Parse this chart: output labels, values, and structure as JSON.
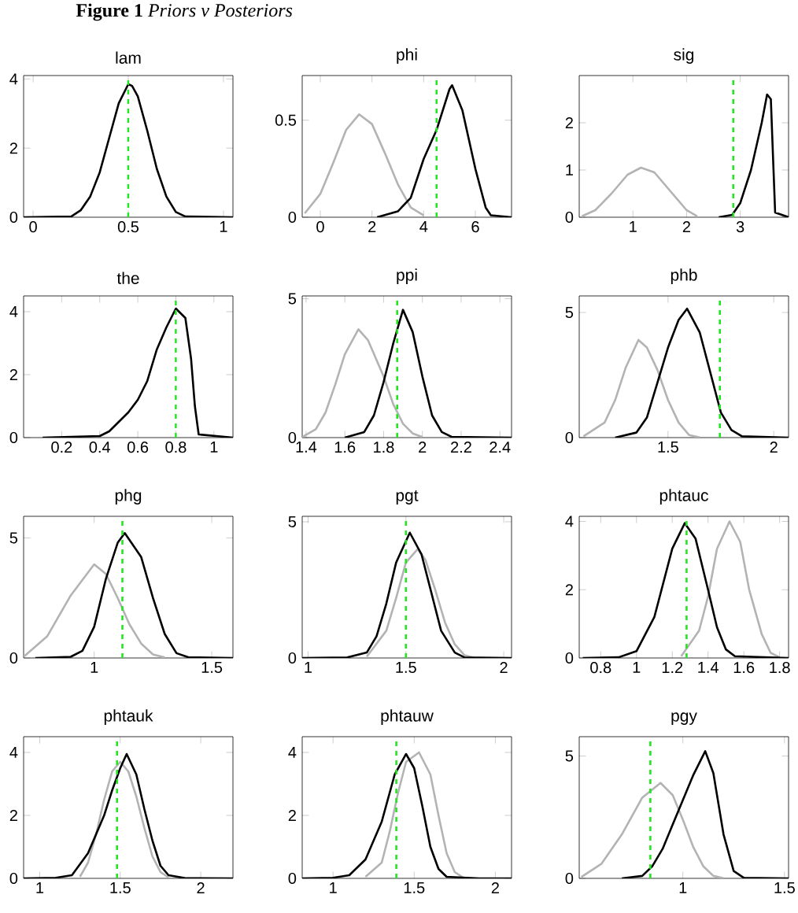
{
  "chart_data": [
    {
      "type": "line",
      "title": "lam",
      "annotations": [
        "**Figure 1** *Priors v Posteriors*"
      ],
      "xlim": [
        -0.05,
        1.05
      ],
      "ylim": [
        0,
        4.1
      ],
      "xticks": [
        0,
        0.5,
        1
      ],
      "yticks": [
        0,
        2,
        4
      ],
      "series": [
        {
          "color": "#000000",
          "x": [
            -0.05,
            0.2,
            0.25,
            0.3,
            0.35,
            0.4,
            0.45,
            0.5,
            0.52,
            0.55,
            0.6,
            0.65,
            0.7,
            0.75,
            0.8,
            1.05
          ],
          "values": [
            0,
            0.02,
            0.2,
            0.6,
            1.3,
            2.3,
            3.3,
            3.85,
            3.8,
            3.5,
            2.5,
            1.4,
            0.6,
            0.15,
            0.02,
            0
          ]
        }
      ],
      "ref_lines": [
        {
          "axis": "x",
          "value": 0.5,
          "color": "#22e622",
          "line_style": "dashed"
        }
      ]
    },
    {
      "type": "line",
      "title": "phi",
      "xlim": [
        -0.7,
        7.4
      ],
      "ylim": [
        0,
        0.73
      ],
      "xticks": [
        0,
        2,
        4,
        6
      ],
      "yticks": [
        0,
        0.5
      ],
      "series": [
        {
          "color": "#b3b3b3",
          "x": [
            -0.6,
            0,
            0.5,
            1,
            1.5,
            2,
            2.5,
            3,
            3.5,
            4
          ],
          "values": [
            0.02,
            0.12,
            0.28,
            0.45,
            0.53,
            0.48,
            0.33,
            0.17,
            0.05,
            0.01
          ]
        },
        {
          "color": "#000000",
          "x": [
            2.2,
            3,
            3.5,
            4,
            4.5,
            5,
            5.1,
            5.5,
            6,
            6.4,
            6.6,
            7.4
          ],
          "values": [
            0,
            0.03,
            0.1,
            0.3,
            0.45,
            0.66,
            0.68,
            0.55,
            0.25,
            0.05,
            0.01,
            0
          ]
        }
      ],
      "ref_lines": [
        {
          "axis": "x",
          "value": 4.5,
          "color": "#22e622",
          "line_style": "dashed"
        }
      ]
    },
    {
      "type": "line",
      "title": "sig",
      "xlim": [
        0,
        3.9
      ],
      "ylim": [
        0,
        3
      ],
      "xticks": [
        1,
        2,
        3
      ],
      "yticks": [
        0,
        1,
        2
      ],
      "series": [
        {
          "color": "#b3b3b3",
          "x": [
            0.05,
            0.3,
            0.6,
            0.9,
            1.15,
            1.4,
            1.7,
            2,
            2.2
          ],
          "values": [
            0.02,
            0.15,
            0.5,
            0.9,
            1.05,
            0.95,
            0.55,
            0.15,
            0.02
          ]
        },
        {
          "color": "#000000",
          "x": [
            2.6,
            2.85,
            3.0,
            3.2,
            3.4,
            3.5,
            3.57,
            3.62,
            3.65,
            3.9
          ],
          "values": [
            0,
            0.05,
            0.3,
            1.0,
            2.0,
            2.6,
            2.5,
            1.0,
            0.1,
            0
          ]
        }
      ],
      "ref_lines": [
        {
          "axis": "x",
          "value": 2.87,
          "color": "#22e622",
          "line_style": "dashed"
        }
      ]
    },
    {
      "type": "line",
      "title": "the",
      "xlim": [
        0,
        1.1
      ],
      "ylim": [
        0,
        4.5
      ],
      "xticks": [
        0.2,
        0.4,
        0.6,
        0.8,
        1
      ],
      "yticks": [
        0,
        2,
        4
      ],
      "series": [
        {
          "color": "#000000",
          "x": [
            0.1,
            0.4,
            0.45,
            0.5,
            0.55,
            0.6,
            0.65,
            0.7,
            0.75,
            0.8,
            0.85,
            0.88,
            0.9,
            0.92,
            1.1
          ],
          "values": [
            0,
            0.05,
            0.2,
            0.5,
            0.8,
            1.2,
            1.8,
            2.8,
            3.5,
            4.1,
            3.8,
            2.5,
            1.0,
            0.1,
            0
          ]
        }
      ],
      "ref_lines": [
        {
          "axis": "x",
          "value": 0.8,
          "color": "#22e622",
          "line_style": "dashed"
        }
      ]
    },
    {
      "type": "line",
      "title": "ppi",
      "xlim": [
        1.38,
        2.46
      ],
      "ylim": [
        0,
        5.1
      ],
      "xticks": [
        1.4,
        1.6,
        1.8,
        2,
        2.2,
        2.4
      ],
      "yticks": [
        0,
        5
      ],
      "series": [
        {
          "color": "#b3b3b3",
          "x": [
            1.38,
            1.45,
            1.5,
            1.55,
            1.6,
            1.67,
            1.72,
            1.8,
            1.85,
            1.9,
            1.95,
            2.0
          ],
          "values": [
            0.02,
            0.3,
            0.9,
            1.9,
            3.0,
            3.9,
            3.5,
            2.2,
            1.2,
            0.5,
            0.15,
            0.02
          ]
        },
        {
          "color": "#000000",
          "x": [
            1.6,
            1.7,
            1.75,
            1.8,
            1.85,
            1.9,
            1.95,
            2.0,
            2.05,
            2.1,
            2.15,
            2.46
          ],
          "values": [
            0,
            0.2,
            0.8,
            2.0,
            3.4,
            4.6,
            3.8,
            2.2,
            0.8,
            0.2,
            0.03,
            0
          ]
        }
      ],
      "ref_lines": [
        {
          "axis": "x",
          "value": 1.87,
          "color": "#22e622",
          "line_style": "dashed"
        }
      ]
    },
    {
      "type": "line",
      "title": "phb",
      "xlim": [
        1.08,
        2.07
      ],
      "ylim": [
        0,
        5.66
      ],
      "xticks": [
        1.5,
        2
      ],
      "yticks": [
        0,
        5
      ],
      "series": [
        {
          "color": "#b3b3b3",
          "x": [
            1.1,
            1.2,
            1.25,
            1.3,
            1.36,
            1.4,
            1.45,
            1.5,
            1.55,
            1.6,
            1.65
          ],
          "values": [
            0.05,
            0.6,
            1.5,
            2.8,
            3.9,
            3.6,
            2.7,
            1.5,
            0.6,
            0.1,
            0.01
          ]
        },
        {
          "color": "#000000",
          "x": [
            1.25,
            1.35,
            1.4,
            1.45,
            1.5,
            1.55,
            1.59,
            1.65,
            1.7,
            1.75,
            1.8,
            1.85,
            2.07
          ],
          "values": [
            0,
            0.2,
            0.8,
            2.2,
            3.6,
            4.7,
            5.15,
            4.2,
            2.6,
            1.0,
            0.3,
            0.05,
            0
          ]
        }
      ],
      "ref_lines": [
        {
          "axis": "x",
          "value": 1.745,
          "color": "#22e622",
          "line_style": "dashed"
        }
      ]
    },
    {
      "type": "line",
      "title": "phg",
      "xlim": [
        0.7,
        1.59
      ],
      "ylim": [
        0,
        5.9
      ],
      "xticks": [
        1,
        1.5
      ],
      "yticks": [
        0,
        5
      ],
      "series": [
        {
          "color": "#b3b3b3",
          "x": [
            0.7,
            0.8,
            0.9,
            1.0,
            1.05,
            1.1,
            1.15,
            1.2,
            1.25,
            1.3
          ],
          "values": [
            0.05,
            0.9,
            2.6,
            3.9,
            3.5,
            2.5,
            1.4,
            0.6,
            0.15,
            0.02
          ]
        },
        {
          "color": "#000000",
          "x": [
            0.75,
            0.9,
            0.95,
            1.0,
            1.05,
            1.1,
            1.13,
            1.2,
            1.25,
            1.3,
            1.35,
            1.4,
            1.59
          ],
          "values": [
            0,
            0.05,
            0.3,
            1.3,
            3.3,
            4.8,
            5.2,
            4.2,
            2.5,
            1.0,
            0.2,
            0.03,
            0
          ]
        }
      ],
      "ref_lines": [
        {
          "axis": "x",
          "value": 1.12,
          "color": "#22e622",
          "line_style": "dashed"
        }
      ]
    },
    {
      "type": "line",
      "title": "pgt",
      "xlim": [
        0.97,
        2.04
      ],
      "ylim": [
        0,
        5.2
      ],
      "xticks": [
        1,
        1.5,
        2
      ],
      "yticks": [
        0,
        5
      ],
      "series": [
        {
          "color": "#b3b3b3",
          "x": [
            1.3,
            1.4,
            1.45,
            1.5,
            1.56,
            1.6,
            1.65,
            1.7,
            1.75,
            1.8,
            1.85
          ],
          "values": [
            0.05,
            1.0,
            2.2,
            3.5,
            4.0,
            3.6,
            2.5,
            1.3,
            0.5,
            0.1,
            0.01
          ]
        },
        {
          "color": "#000000",
          "x": [
            0.97,
            1.2,
            1.3,
            1.35,
            1.4,
            1.45,
            1.52,
            1.58,
            1.63,
            1.68,
            1.75,
            1.8,
            2.04
          ],
          "values": [
            0,
            0.02,
            0.2,
            0.8,
            2.0,
            3.5,
            4.6,
            3.8,
            2.4,
            1.0,
            0.2,
            0.02,
            0
          ]
        }
      ],
      "ref_lines": [
        {
          "axis": "x",
          "value": 1.5,
          "color": "#22e622",
          "line_style": "dashed"
        }
      ]
    },
    {
      "type": "line",
      "title": "phtauc",
      "xlim": [
        0.68,
        1.85
      ],
      "ylim": [
        0,
        4.15
      ],
      "xticks": [
        0.8,
        1,
        1.2,
        1.4,
        1.6,
        1.8
      ],
      "yticks": [
        0,
        2,
        4
      ],
      "series": [
        {
          "color": "#b3b3b3",
          "x": [
            1.25,
            1.35,
            1.4,
            1.45,
            1.52,
            1.58,
            1.63,
            1.7,
            1.75,
            1.8
          ],
          "values": [
            0.05,
            0.8,
            1.8,
            3.2,
            4.0,
            3.4,
            2.0,
            0.7,
            0.15,
            0.02
          ]
        },
        {
          "color": "#000000",
          "x": [
            0.7,
            0.9,
            1.0,
            1.1,
            1.2,
            1.27,
            1.33,
            1.4,
            1.45,
            1.5,
            1.55,
            1.85
          ],
          "values": [
            0,
            0.02,
            0.2,
            1.2,
            3.2,
            3.95,
            3.5,
            2.0,
            0.9,
            0.25,
            0.05,
            0
          ]
        }
      ],
      "ref_lines": [
        {
          "axis": "x",
          "value": 1.28,
          "color": "#22e622",
          "line_style": "dashed"
        }
      ]
    },
    {
      "type": "line",
      "title": "phtauk",
      "xlim": [
        0.9,
        2.2
      ],
      "ylim": [
        0,
        4.5
      ],
      "xticks": [
        1,
        1.5,
        2
      ],
      "yticks": [
        0,
        2,
        4
      ],
      "series": [
        {
          "color": "#b3b3b3",
          "x": [
            1.25,
            1.3,
            1.35,
            1.4,
            1.45,
            1.5,
            1.55,
            1.6,
            1.65,
            1.7,
            1.75,
            1.8
          ],
          "values": [
            0.05,
            0.5,
            1.4,
            2.5,
            3.4,
            3.7,
            3.4,
            2.6,
            1.6,
            0.7,
            0.2,
            0.03
          ]
        },
        {
          "color": "#000000",
          "x": [
            0.9,
            1.1,
            1.2,
            1.3,
            1.4,
            1.45,
            1.5,
            1.54,
            1.6,
            1.65,
            1.7,
            1.75,
            1.8,
            1.9,
            2.2
          ],
          "values": [
            0,
            0.02,
            0.1,
            0.8,
            2.0,
            2.8,
            3.5,
            3.95,
            3.3,
            2.2,
            1.2,
            0.4,
            0.1,
            0.01,
            0
          ]
        }
      ],
      "ref_lines": [
        {
          "axis": "x",
          "value": 1.48,
          "color": "#22e622",
          "line_style": "dashed"
        }
      ]
    },
    {
      "type": "line",
      "title": "phtauw",
      "xlim": [
        0.81,
        2.1
      ],
      "ylim": [
        0,
        4.5
      ],
      "xticks": [
        1,
        1.5,
        2
      ],
      "yticks": [
        0,
        2,
        4
      ],
      "series": [
        {
          "color": "#b3b3b3",
          "x": [
            1.2,
            1.3,
            1.35,
            1.4,
            1.45,
            1.53,
            1.6,
            1.65,
            1.7,
            1.75,
            1.8
          ],
          "values": [
            0.05,
            0.5,
            1.5,
            2.7,
            3.7,
            4.0,
            3.3,
            2.0,
            0.8,
            0.2,
            0.03
          ]
        },
        {
          "color": "#000000",
          "x": [
            0.81,
            1.0,
            1.1,
            1.2,
            1.3,
            1.38,
            1.45,
            1.5,
            1.55,
            1.6,
            1.65,
            1.7,
            1.9,
            2.1
          ],
          "values": [
            0,
            0.02,
            0.1,
            0.6,
            1.8,
            3.3,
            3.95,
            3.5,
            2.3,
            1.0,
            0.3,
            0.05,
            0,
            0
          ]
        }
      ],
      "ref_lines": [
        {
          "axis": "x",
          "value": 1.39,
          "color": "#22e622",
          "line_style": "dashed"
        }
      ]
    },
    {
      "type": "line",
      "title": "pgy",
      "xlim": [
        0.49,
        1.52
      ],
      "ylim": [
        0,
        5.79
      ],
      "xticks": [
        1,
        1.5
      ],
      "yticks": [
        0,
        5
      ],
      "series": [
        {
          "color": "#b3b3b3",
          "x": [
            0.5,
            0.6,
            0.7,
            0.8,
            0.89,
            0.95,
            1.0,
            1.05,
            1.1,
            1.15,
            1.2
          ],
          "values": [
            0.05,
            0.6,
            1.8,
            3.3,
            3.9,
            3.4,
            2.4,
            1.3,
            0.5,
            0.1,
            0.01
          ]
        },
        {
          "color": "#000000",
          "x": [
            0.7,
            0.8,
            0.85,
            0.9,
            0.95,
            1.0,
            1.05,
            1.11,
            1.15,
            1.2,
            1.25,
            1.3,
            1.52
          ],
          "values": [
            0,
            0.1,
            0.5,
            1.2,
            2.2,
            3.2,
            4.2,
            5.2,
            4.3,
            1.8,
            0.3,
            0.02,
            0
          ]
        }
      ],
      "ref_lines": [
        {
          "axis": "x",
          "value": 0.84,
          "color": "#22e622",
          "line_style": "dashed"
        }
      ]
    }
  ]
}
